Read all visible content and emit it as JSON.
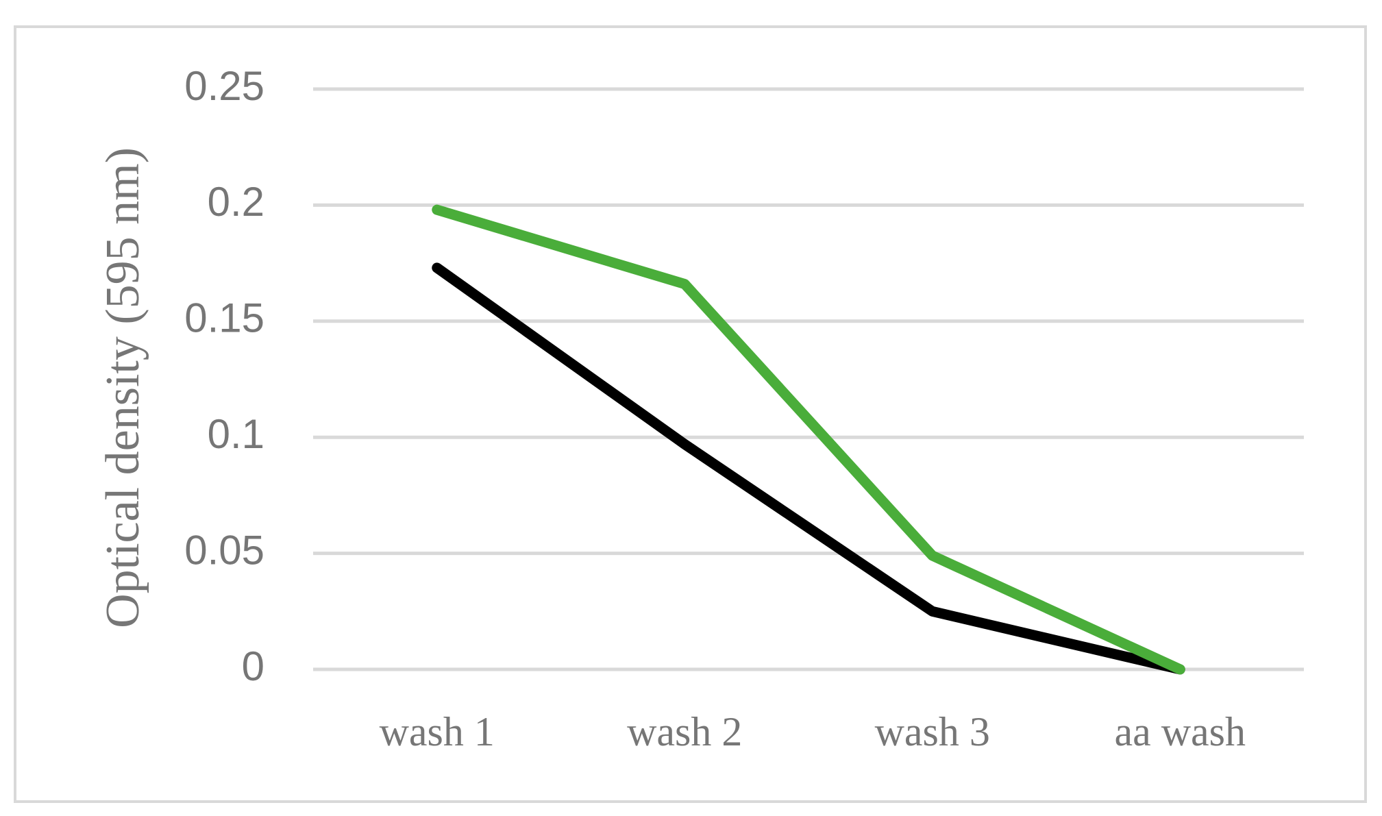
{
  "chart_data": {
    "type": "line",
    "y_label": "Optical density (595 nm)",
    "categories": [
      "wash 1",
      "wash 2",
      "wash 3",
      "aa wash"
    ],
    "series": [
      {
        "color": "#000000",
        "values": [
          0.173,
          0.097,
          0.025,
          0
        ]
      },
      {
        "color": "#4aad3a",
        "values": [
          0.198,
          0.166,
          0.049,
          0
        ]
      }
    ],
    "ylim": [
      0,
      0.25
    ],
    "yticks": [
      0,
      0.05,
      0.1,
      0.15,
      0.2,
      0.25
    ],
    "grid": true
  }
}
